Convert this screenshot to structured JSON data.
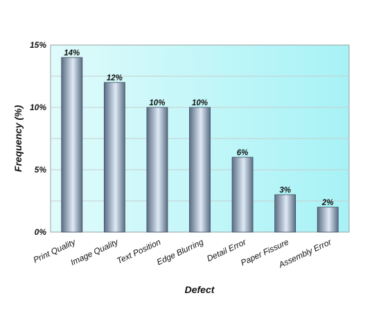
{
  "chart_data": {
    "type": "bar",
    "title": "",
    "xlabel": "Defect",
    "ylabel": "Frequency (%)",
    "categories": [
      "Print Quality",
      "Image Quality",
      "Text Position",
      "Edge Blurring",
      "Detail Error",
      "Paper Fissure",
      "Assembly Error"
    ],
    "values": [
      14,
      12,
      10,
      10,
      6,
      3,
      2
    ],
    "data_labels": [
      "14%",
      "12%",
      "10%",
      "10%",
      "6%",
      "3%",
      "2%"
    ],
    "ylim": [
      0,
      15
    ],
    "yticks": [
      0,
      5,
      10,
      15
    ],
    "ytick_labels": [
      "0%",
      "5%",
      "10%",
      "15%"
    ],
    "grid": true,
    "legend": "none",
    "colors": {
      "plot_bg_left": "#e0fbfb",
      "plot_bg_right": "#a7f2f6",
      "bar_dark": "#5b6d85",
      "bar_light": "#dfeaf5",
      "grid": "#c7cdcd"
    }
  }
}
